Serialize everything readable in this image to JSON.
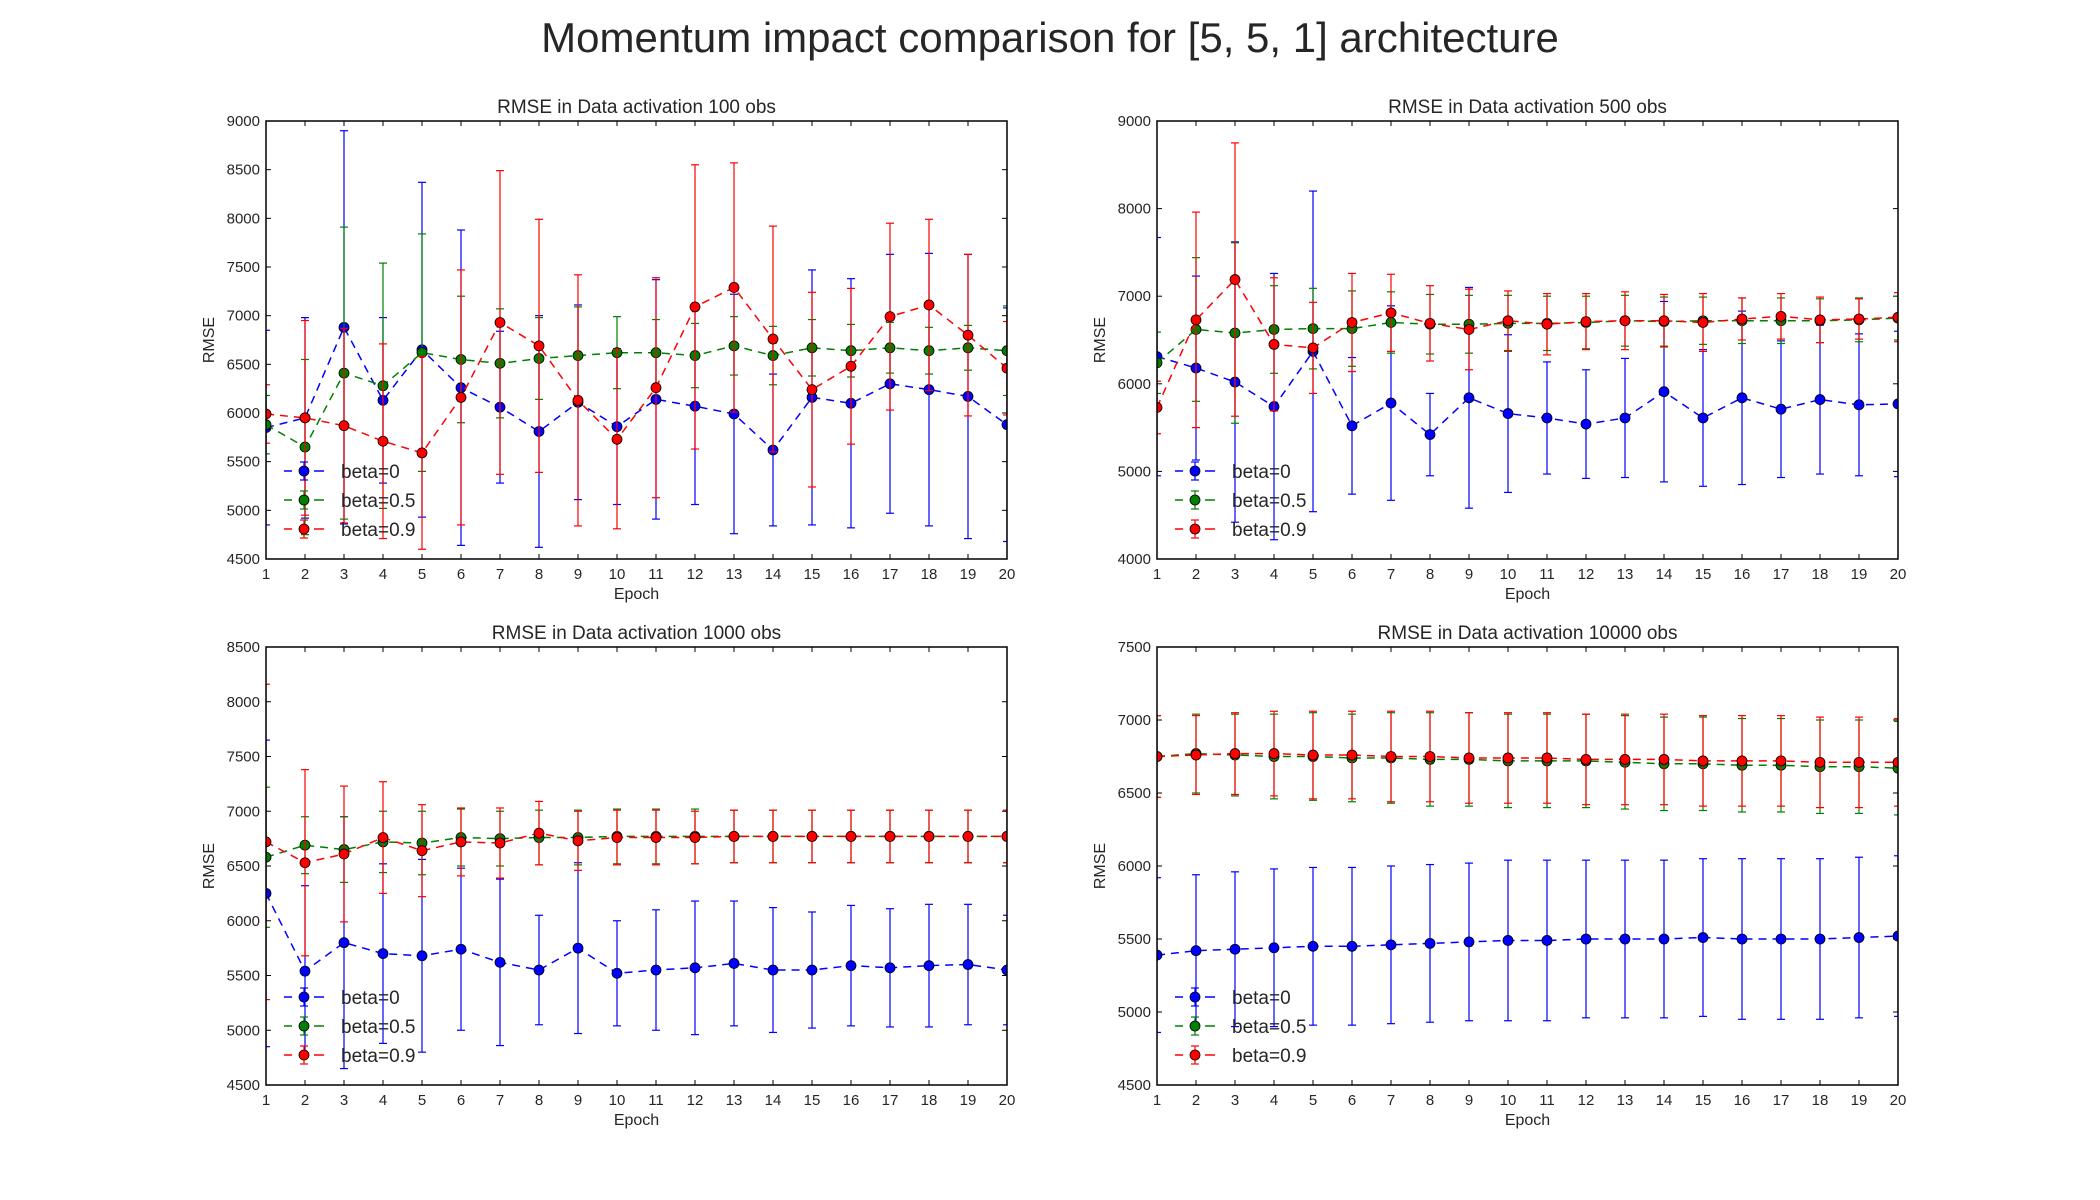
{
  "figure_title": "Momentum impact comparison for [5, 5, 1] architecture",
  "colors": {
    "beta=0": "#0000ff",
    "beta=0.5": "#008000",
    "beta=0.9": "#ff0000",
    "axes": "#000000"
  },
  "chart_data": [
    {
      "type": "line",
      "title": "RMSE in Data activation 100 obs",
      "xlabel": "Epoch",
      "ylabel": "RMSE",
      "xlim": [
        1,
        20
      ],
      "ylim": [
        4500,
        9000
      ],
      "yticks": [
        4500,
        5000,
        5500,
        6000,
        6500,
        7000,
        7500,
        8000,
        8500,
        9000
      ],
      "x": [
        1,
        2,
        3,
        4,
        5,
        6,
        7,
        8,
        9,
        10,
        11,
        12,
        13,
        14,
        15,
        16,
        17,
        18,
        19,
        20
      ],
      "legend": "lower-left",
      "error_bars": true,
      "series": [
        {
          "name": "beta=0",
          "values": [
            5850,
            5950,
            6880,
            6130,
            6650,
            6260,
            6060,
            5810,
            6110,
            5860,
            6140,
            6070,
            5990,
            5620,
            6160,
            6100,
            6300,
            6240,
            6170,
            5880
          ],
          "errors": [
            1000,
            1030,
            2020,
            850,
            1720,
            1620,
            780,
            1190,
            1000,
            800,
            1230,
            1010,
            1230,
            780,
            1310,
            1280,
            1330,
            1400,
            1460,
            1200
          ]
        },
        {
          "name": "beta=0.5",
          "values": [
            5880,
            5650,
            6410,
            6280,
            6620,
            6550,
            6510,
            6560,
            6590,
            6620,
            6620,
            6590,
            6690,
            6590,
            6670,
            6640,
            6670,
            6640,
            6670,
            6640
          ],
          "errors": [
            300,
            900,
            1500,
            1260,
            1220,
            650,
            560,
            420,
            500,
            370,
            340,
            330,
            300,
            300,
            290,
            270,
            260,
            240,
            230,
            460
          ]
        },
        {
          "name": "beta=0.9",
          "values": [
            5990,
            5950,
            5870,
            5710,
            5590,
            6160,
            6930,
            6690,
            6130,
            5730,
            6260,
            7090,
            7290,
            6760,
            6240,
            6480,
            6990,
            7110,
            6800,
            6460
          ],
          "errors": [
            300,
            1000,
            1000,
            1000,
            990,
            1310,
            1560,
            1300,
            1290,
            920,
            1130,
            1460,
            1280,
            1160,
            1000,
            800,
            960,
            880,
            830,
            480
          ]
        }
      ]
    },
    {
      "type": "line",
      "title": "RMSE in Data activation 500 obs",
      "xlabel": "Epoch",
      "ylabel": "RMSE",
      "xlim": [
        1,
        20
      ],
      "ylim": [
        4000,
        9000
      ],
      "yticks": [
        4000,
        5000,
        6000,
        7000,
        8000,
        9000
      ],
      "x": [
        1,
        2,
        3,
        4,
        5,
        6,
        7,
        8,
        9,
        10,
        11,
        12,
        13,
        14,
        15,
        16,
        17,
        18,
        19,
        20
      ],
      "legend": "lower-left",
      "error_bars": true,
      "series": [
        {
          "name": "beta=0",
          "values": [
            6310,
            6180,
            6020,
            5740,
            6370,
            5520,
            5780,
            5420,
            5840,
            5660,
            5610,
            5540,
            5610,
            5910,
            5610,
            5840,
            5710,
            5820,
            5760,
            5770
          ],
          "errors": [
            1360,
            1050,
            1600,
            1520,
            1830,
            780,
            1110,
            470,
            1260,
            900,
            640,
            620,
            680,
            1030,
            780,
            990,
            780,
            850,
            810,
            830
          ]
        },
        {
          "name": "beta=0.5",
          "values": [
            6240,
            6620,
            6580,
            6620,
            6630,
            6630,
            6700,
            6680,
            6680,
            6690,
            6690,
            6700,
            6720,
            6710,
            6720,
            6720,
            6720,
            6720,
            6730,
            6750
          ],
          "errors": [
            350,
            820,
            1030,
            500,
            460,
            430,
            350,
            340,
            330,
            320,
            310,
            300,
            290,
            280,
            270,
            260,
            260,
            250,
            250,
            250
          ]
        },
        {
          "name": "beta=0.9",
          "values": [
            5730,
            6730,
            7190,
            6450,
            6410,
            6700,
            6810,
            6690,
            6620,
            6720,
            6680,
            6710,
            6720,
            6720,
            6700,
            6740,
            6770,
            6730,
            6740,
            6760
          ],
          "errors": [
            300,
            1230,
            1560,
            760,
            520,
            560,
            440,
            430,
            460,
            340,
            350,
            320,
            330,
            300,
            330,
            240,
            260,
            260,
            230,
            280
          ]
        }
      ]
    },
    {
      "type": "line",
      "title": "RMSE in Data activation 1000 obs",
      "xlabel": "Epoch",
      "ylabel": "RMSE",
      "xlim": [
        1,
        20
      ],
      "ylim": [
        4500,
        8500
      ],
      "yticks": [
        4500,
        5000,
        5500,
        6000,
        6500,
        7000,
        7500,
        8000,
        8500
      ],
      "x": [
        1,
        2,
        3,
        4,
        5,
        6,
        7,
        8,
        9,
        10,
        11,
        12,
        13,
        14,
        15,
        16,
        17,
        18,
        19,
        20
      ],
      "legend": "lower-left",
      "error_bars": true,
      "series": [
        {
          "name": "beta=0",
          "values": [
            6250,
            5540,
            5800,
            5700,
            5680,
            5740,
            5620,
            5550,
            5750,
            5520,
            5550,
            5570,
            5610,
            5550,
            5550,
            5590,
            5570,
            5590,
            5600,
            5550
          ],
          "errors": [
            1400,
            780,
            1150,
            820,
            880,
            740,
            760,
            500,
            780,
            480,
            550,
            610,
            570,
            570,
            530,
            550,
            540,
            560,
            550,
            500
          ]
        },
        {
          "name": "beta=0.5",
          "values": [
            6580,
            6690,
            6650,
            6720,
            6710,
            6760,
            6750,
            6760,
            6760,
            6770,
            6770,
            6770,
            6770,
            6770,
            6770,
            6770,
            6770,
            6770,
            6770,
            6770
          ],
          "errors": [
            640,
            260,
            300,
            280,
            290,
            260,
            250,
            250,
            250,
            250,
            250,
            250,
            240,
            240,
            240,
            240,
            240,
            240,
            240,
            240
          ]
        },
        {
          "name": "beta=0.9",
          "values": [
            6720,
            6530,
            6610,
            6760,
            6640,
            6720,
            6710,
            6800,
            6730,
            6760,
            6760,
            6760,
            6770,
            6770,
            6770,
            6770,
            6770,
            6770,
            6770,
            6770
          ],
          "errors": [
            1440,
            850,
            620,
            510,
            420,
            310,
            320,
            290,
            270,
            250,
            250,
            240,
            240,
            240,
            240,
            240,
            240,
            240,
            240,
            240
          ]
        }
      ]
    },
    {
      "type": "line",
      "title": "RMSE in Data activation 10000 obs",
      "xlabel": "Epoch",
      "ylabel": "RMSE",
      "xlim": [
        1,
        20
      ],
      "ylim": [
        4500,
        7500
      ],
      "yticks": [
        4500,
        5000,
        5500,
        6000,
        6500,
        7000,
        7500
      ],
      "x": [
        1,
        2,
        3,
        4,
        5,
        6,
        7,
        8,
        9,
        10,
        11,
        12,
        13,
        14,
        15,
        16,
        17,
        18,
        19,
        20
      ],
      "legend": "lower-left",
      "error_bars": true,
      "series": [
        {
          "name": "beta=0",
          "values": [
            5390,
            5420,
            5430,
            5440,
            5450,
            5450,
            5460,
            5470,
            5480,
            5490,
            5490,
            5500,
            5500,
            5500,
            5510,
            5500,
            5500,
            5500,
            5510,
            5520
          ],
          "errors": [
            530,
            520,
            530,
            540,
            540,
            540,
            540,
            540,
            540,
            550,
            550,
            540,
            540,
            540,
            540,
            550,
            550,
            550,
            550,
            550
          ]
        },
        {
          "name": "beta=0.5",
          "values": [
            6750,
            6770,
            6760,
            6750,
            6750,
            6740,
            6740,
            6730,
            6730,
            6720,
            6720,
            6720,
            6710,
            6700,
            6700,
            6690,
            6690,
            6680,
            6680,
            6670
          ],
          "errors": [
            280,
            270,
            280,
            290,
            300,
            300,
            310,
            320,
            320,
            320,
            320,
            320,
            320,
            320,
            320,
            320,
            320,
            320,
            320,
            320
          ]
        },
        {
          "name": "beta=0.9",
          "values": [
            6750,
            6760,
            6770,
            6770,
            6760,
            6760,
            6750,
            6750,
            6740,
            6740,
            6740,
            6730,
            6730,
            6730,
            6720,
            6720,
            6720,
            6710,
            6710,
            6710
          ],
          "errors": [
            280,
            270,
            280,
            290,
            300,
            300,
            310,
            310,
            310,
            310,
            310,
            310,
            310,
            310,
            310,
            310,
            310,
            310,
            310,
            300
          ]
        }
      ]
    }
  ]
}
